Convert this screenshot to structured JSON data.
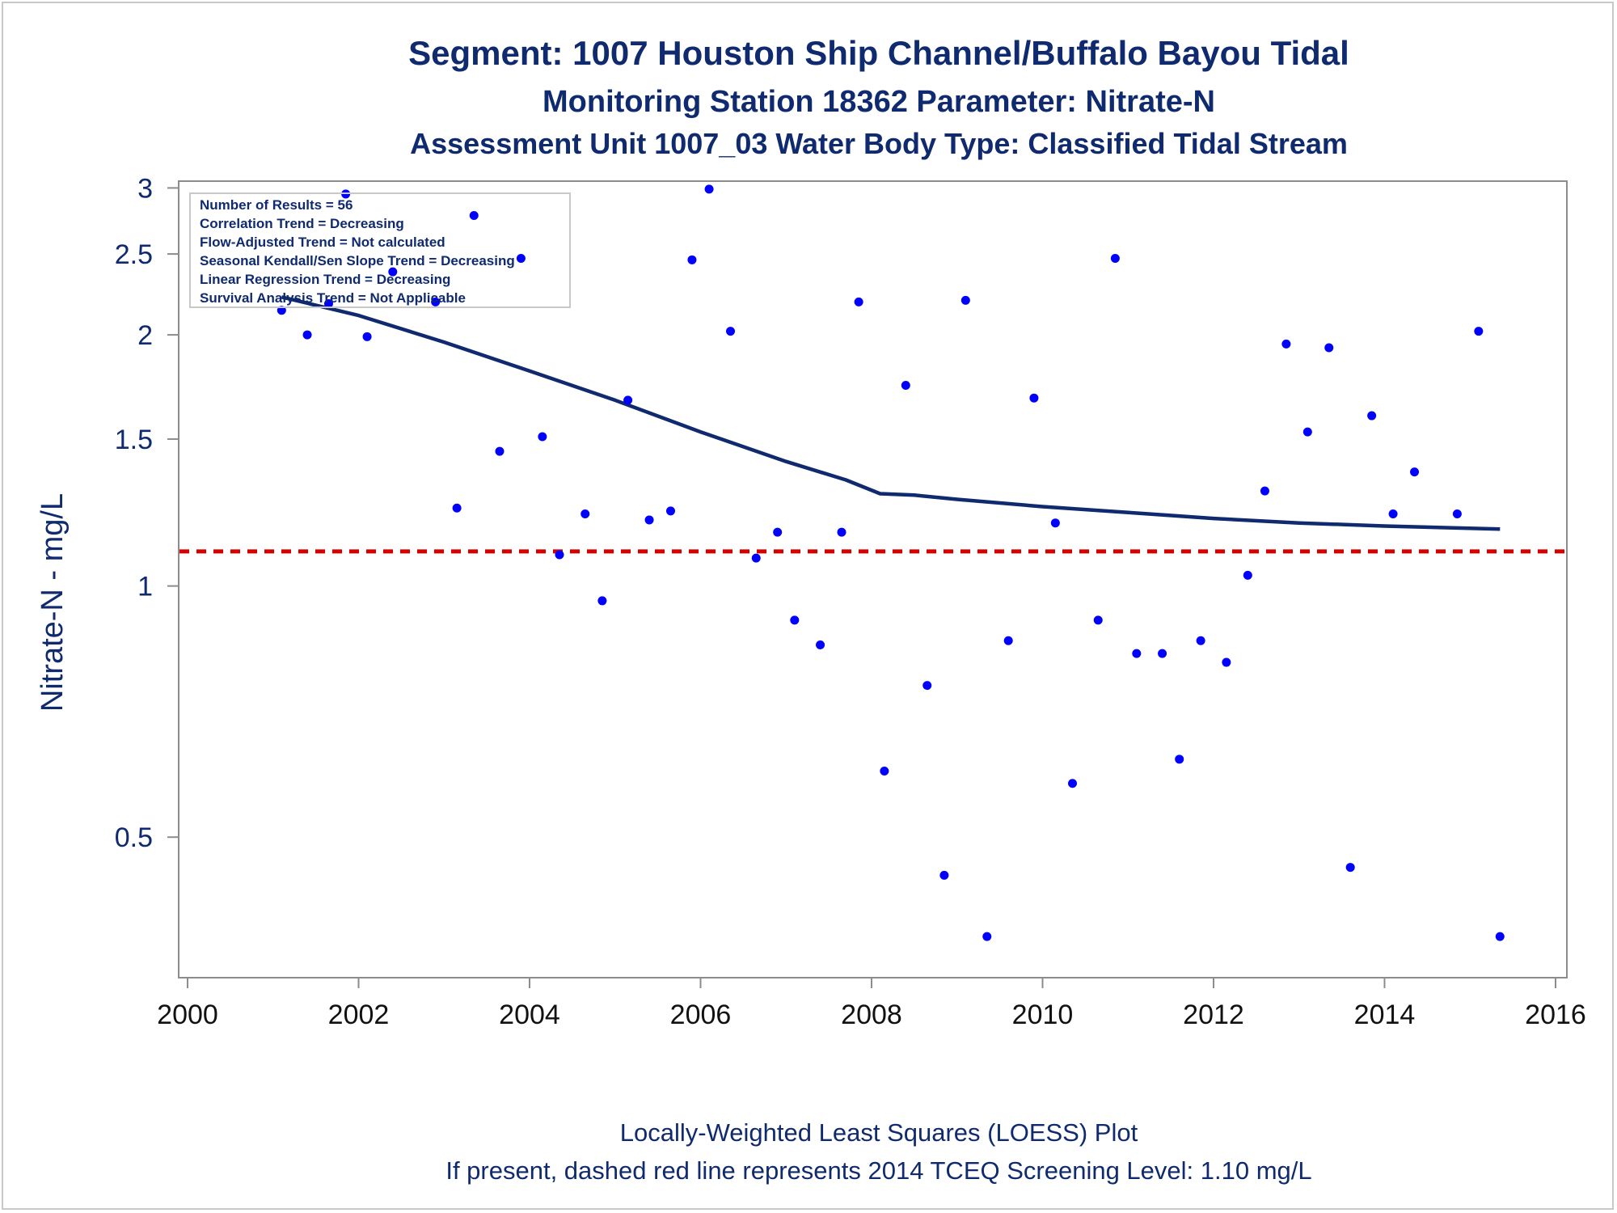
{
  "chart_data": {
    "type": "scatter",
    "title": "Segment: 1007  Houston Ship Channel/Buffalo Bayou Tidal",
    "subtitle": "Monitoring Station 18362 Parameter: Nitrate-N",
    "subtitle2": "Assessment Unit 1007_03   Water Body Type: Classified Tidal Stream",
    "ylabel": "Nitrate-N - mg/L",
    "xlabel": "",
    "footnote": "Locally-Weighted Least Squares (LOESS) Plot",
    "footnote2": "If present, dashed red line represents 2014 TCEQ Screening Level: 1.10 mg/L",
    "y_scale": "log",
    "xlim": [
      2000,
      2016
    ],
    "ylim": [
      0.34,
      3.05
    ],
    "x_ticks": [
      "2000",
      "2002",
      "2004",
      "2006",
      "2008",
      "2010",
      "2012",
      "2014",
      "2016"
    ],
    "x_tick_values": [
      2000,
      2002,
      2004,
      2006,
      2008,
      2010,
      2012,
      2014,
      2016
    ],
    "y_ticks": [
      "0.5",
      "1",
      "1.5",
      "2",
      "2.5",
      "3"
    ],
    "y_tick_values": [
      0.5,
      1,
      1.5,
      2,
      2.5,
      3
    ],
    "grid": false,
    "legend_box": {
      "position": "top-left",
      "lines": [
        "Number of Results = 56",
        "Correlation Trend = Decreasing",
        "Flow-Adjusted Trend = Not calculated",
        "Seasonal Kendall/Sen Slope Trend = Decreasing",
        "Linear Regression Trend = Decreasing",
        "Survival Analysis Trend = Not Applicable"
      ]
    },
    "screening_level": {
      "value": 1.1,
      "color": "#d40000"
    },
    "colors": {
      "points": "#0000ff",
      "loess": "#0f2a6e",
      "text": "#0f2a6e",
      "axis": "#8c8c8c"
    },
    "points": [
      {
        "x": 2001.1,
        "y": 2.14
      },
      {
        "x": 2001.4,
        "y": 2.0
      },
      {
        "x": 2001.65,
        "y": 2.18
      },
      {
        "x": 2001.85,
        "y": 2.95
      },
      {
        "x": 2002.1,
        "y": 1.99
      },
      {
        "x": 2002.4,
        "y": 2.38
      },
      {
        "x": 2002.9,
        "y": 2.19
      },
      {
        "x": 2003.15,
        "y": 1.24
      },
      {
        "x": 2003.35,
        "y": 2.78
      },
      {
        "x": 2003.65,
        "y": 1.45
      },
      {
        "x": 2003.9,
        "y": 2.47
      },
      {
        "x": 2004.15,
        "y": 1.51
      },
      {
        "x": 2004.35,
        "y": 1.09
      },
      {
        "x": 2004.65,
        "y": 1.22
      },
      {
        "x": 2004.85,
        "y": 0.96
      },
      {
        "x": 2005.15,
        "y": 1.67
      },
      {
        "x": 2005.4,
        "y": 1.2
      },
      {
        "x": 2005.65,
        "y": 1.23
      },
      {
        "x": 2005.9,
        "y": 2.46
      },
      {
        "x": 2006.1,
        "y": 2.99
      },
      {
        "x": 2006.35,
        "y": 2.02
      },
      {
        "x": 2006.65,
        "y": 1.08
      },
      {
        "x": 2006.9,
        "y": 1.16
      },
      {
        "x": 2007.1,
        "y": 0.91
      },
      {
        "x": 2007.4,
        "y": 0.85
      },
      {
        "x": 2007.65,
        "y": 1.16
      },
      {
        "x": 2007.85,
        "y": 2.19
      },
      {
        "x": 2008.15,
        "y": 0.6
      },
      {
        "x": 2008.4,
        "y": 1.74
      },
      {
        "x": 2008.65,
        "y": 0.76
      },
      {
        "x": 2008.85,
        "y": 0.45
      },
      {
        "x": 2009.1,
        "y": 2.2
      },
      {
        "x": 2009.35,
        "y": 0.38
      },
      {
        "x": 2009.6,
        "y": 0.86
      },
      {
        "x": 2009.9,
        "y": 1.68
      },
      {
        "x": 2010.15,
        "y": 1.19
      },
      {
        "x": 2010.35,
        "y": 0.58
      },
      {
        "x": 2010.65,
        "y": 0.91
      },
      {
        "x": 2010.85,
        "y": 2.47
      },
      {
        "x": 2011.1,
        "y": 0.83
      },
      {
        "x": 2011.4,
        "y": 0.83
      },
      {
        "x": 2011.6,
        "y": 0.62
      },
      {
        "x": 2011.85,
        "y": 0.86
      },
      {
        "x": 2012.15,
        "y": 0.81
      },
      {
        "x": 2012.4,
        "y": 1.03
      },
      {
        "x": 2012.6,
        "y": 1.3
      },
      {
        "x": 2012.85,
        "y": 1.95
      },
      {
        "x": 2013.1,
        "y": 1.53
      },
      {
        "x": 2013.35,
        "y": 1.93
      },
      {
        "x": 2013.6,
        "y": 0.46
      },
      {
        "x": 2013.85,
        "y": 1.6
      },
      {
        "x": 2014.1,
        "y": 1.22
      },
      {
        "x": 2014.35,
        "y": 1.37
      },
      {
        "x": 2014.85,
        "y": 1.22
      },
      {
        "x": 2015.1,
        "y": 2.02
      },
      {
        "x": 2015.35,
        "y": 0.38
      }
    ],
    "loess": {
      "x": [
        2001.1,
        2002.0,
        2003.0,
        2004.0,
        2005.0,
        2006.0,
        2007.0,
        2007.7,
        2008.1,
        2008.5,
        2009.0,
        2010.0,
        2011.0,
        2012.0,
        2013.0,
        2014.0,
        2015.35
      ],
      "y": [
        2.22,
        2.11,
        1.96,
        1.81,
        1.67,
        1.53,
        1.41,
        1.34,
        1.29,
        1.285,
        1.27,
        1.245,
        1.225,
        1.205,
        1.19,
        1.18,
        1.17
      ]
    }
  }
}
